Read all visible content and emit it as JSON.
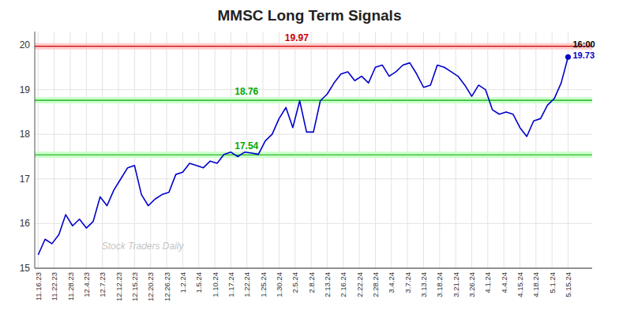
{
  "chart_data": {
    "type": "line",
    "title": "MMSC Long Term Signals",
    "color": "#0000cc",
    "values": [
      15.3,
      15.65,
      15.55,
      15.75,
      16.2,
      15.95,
      16.1,
      15.9,
      16.05,
      16.6,
      16.4,
      16.75,
      17.0,
      17.25,
      17.3,
      16.65,
      16.4,
      16.55,
      16.65,
      16.7,
      17.1,
      17.15,
      17.35,
      17.3,
      17.25,
      17.4,
      17.35,
      17.55,
      17.6,
      17.5,
      17.6,
      17.58,
      17.55,
      17.85,
      18.0,
      18.35,
      18.6,
      18.15,
      18.75,
      18.05,
      18.05,
      18.75,
      18.9,
      19.15,
      19.35,
      19.4,
      19.2,
      19.3,
      19.15,
      19.5,
      19.55,
      19.3,
      19.4,
      19.55,
      19.6,
      19.35,
      19.05,
      19.1,
      19.55,
      19.5,
      19.4,
      19.3,
      19.1,
      18.85,
      19.1,
      19.0,
      18.55,
      18.45,
      18.5,
      18.45,
      18.15,
      17.95,
      18.3,
      18.35,
      18.65,
      18.8,
      19.15,
      19.73
    ],
    "xlim": [
      -0.5,
      80.5
    ],
    "xticks": [
      {
        "value": 0,
        "label": "11.16.23"
      },
      {
        "value": 2.3333,
        "label": "11.22.23"
      },
      {
        "value": 4.6667,
        "label": "11.28.23"
      },
      {
        "value": 7,
        "label": "12.4.23"
      },
      {
        "value": 9.3333,
        "label": "12.7.23"
      },
      {
        "value": 11.6667,
        "label": "12.12.23"
      },
      {
        "value": 14,
        "label": "12.15.23"
      },
      {
        "value": 16.3333,
        "label": "12.20.23"
      },
      {
        "value": 18.6667,
        "label": "12.26.23"
      },
      {
        "value": 21,
        "label": "1.2.24"
      },
      {
        "value": 23.3333,
        "label": "1.5.24"
      },
      {
        "value": 25.6667,
        "label": "1.10.24"
      },
      {
        "value": 28,
        "label": "1.17.24"
      },
      {
        "value": 30.3333,
        "label": "1.22.24"
      },
      {
        "value": 32.6667,
        "label": "1.25.24"
      },
      {
        "value": 35,
        "label": "1.30.24"
      },
      {
        "value": 37.3333,
        "label": "2.5.24"
      },
      {
        "value": 39.6667,
        "label": "2.8.24"
      },
      {
        "value": 42,
        "label": "2.13.24"
      },
      {
        "value": 44.3333,
        "label": "2.16.24"
      },
      {
        "value": 46.6667,
        "label": "2.22.24"
      },
      {
        "value": 49,
        "label": "2.28.24"
      },
      {
        "value": 51.3333,
        "label": "3.4.24"
      },
      {
        "value": 53.6667,
        "label": "3.7.24"
      },
      {
        "value": 56,
        "label": "3.13.24"
      },
      {
        "value": 58.3333,
        "label": "3.18.24"
      },
      {
        "value": 60.6667,
        "label": "3.21.24"
      },
      {
        "value": 63,
        "label": "3.26.24"
      },
      {
        "value": 65.3333,
        "label": "4.1.24"
      },
      {
        "value": 67.6667,
        "label": "4.4.24"
      },
      {
        "value": 70,
        "label": "4.15.24"
      },
      {
        "value": 72.3333,
        "label": "4.18.24"
      },
      {
        "value": 74.6667,
        "label": "5.1.24"
      },
      {
        "value": 77,
        "label": "5.15.24"
      }
    ],
    "ylim": [
      15,
      20.3
    ],
    "yticks": [
      15,
      16,
      17,
      18,
      19,
      20
    ],
    "grid": true,
    "levels": [
      {
        "value": 19.97,
        "label": "19.97",
        "color": "#cc0000",
        "band_color": "#ffcccc"
      },
      {
        "value": 18.76,
        "label": "18.76",
        "color": "#00aa00",
        "band_color": "#ccffcc"
      },
      {
        "value": 17.54,
        "label": "17.54",
        "color": "#00aa00",
        "band_color": "#ccffcc"
      }
    ],
    "annotations": [
      {
        "text": "16:00",
        "color": "#000000"
      },
      {
        "text": "19.73",
        "color": "#0000cc"
      }
    ],
    "watermark": "Stock Traders Daily"
  }
}
